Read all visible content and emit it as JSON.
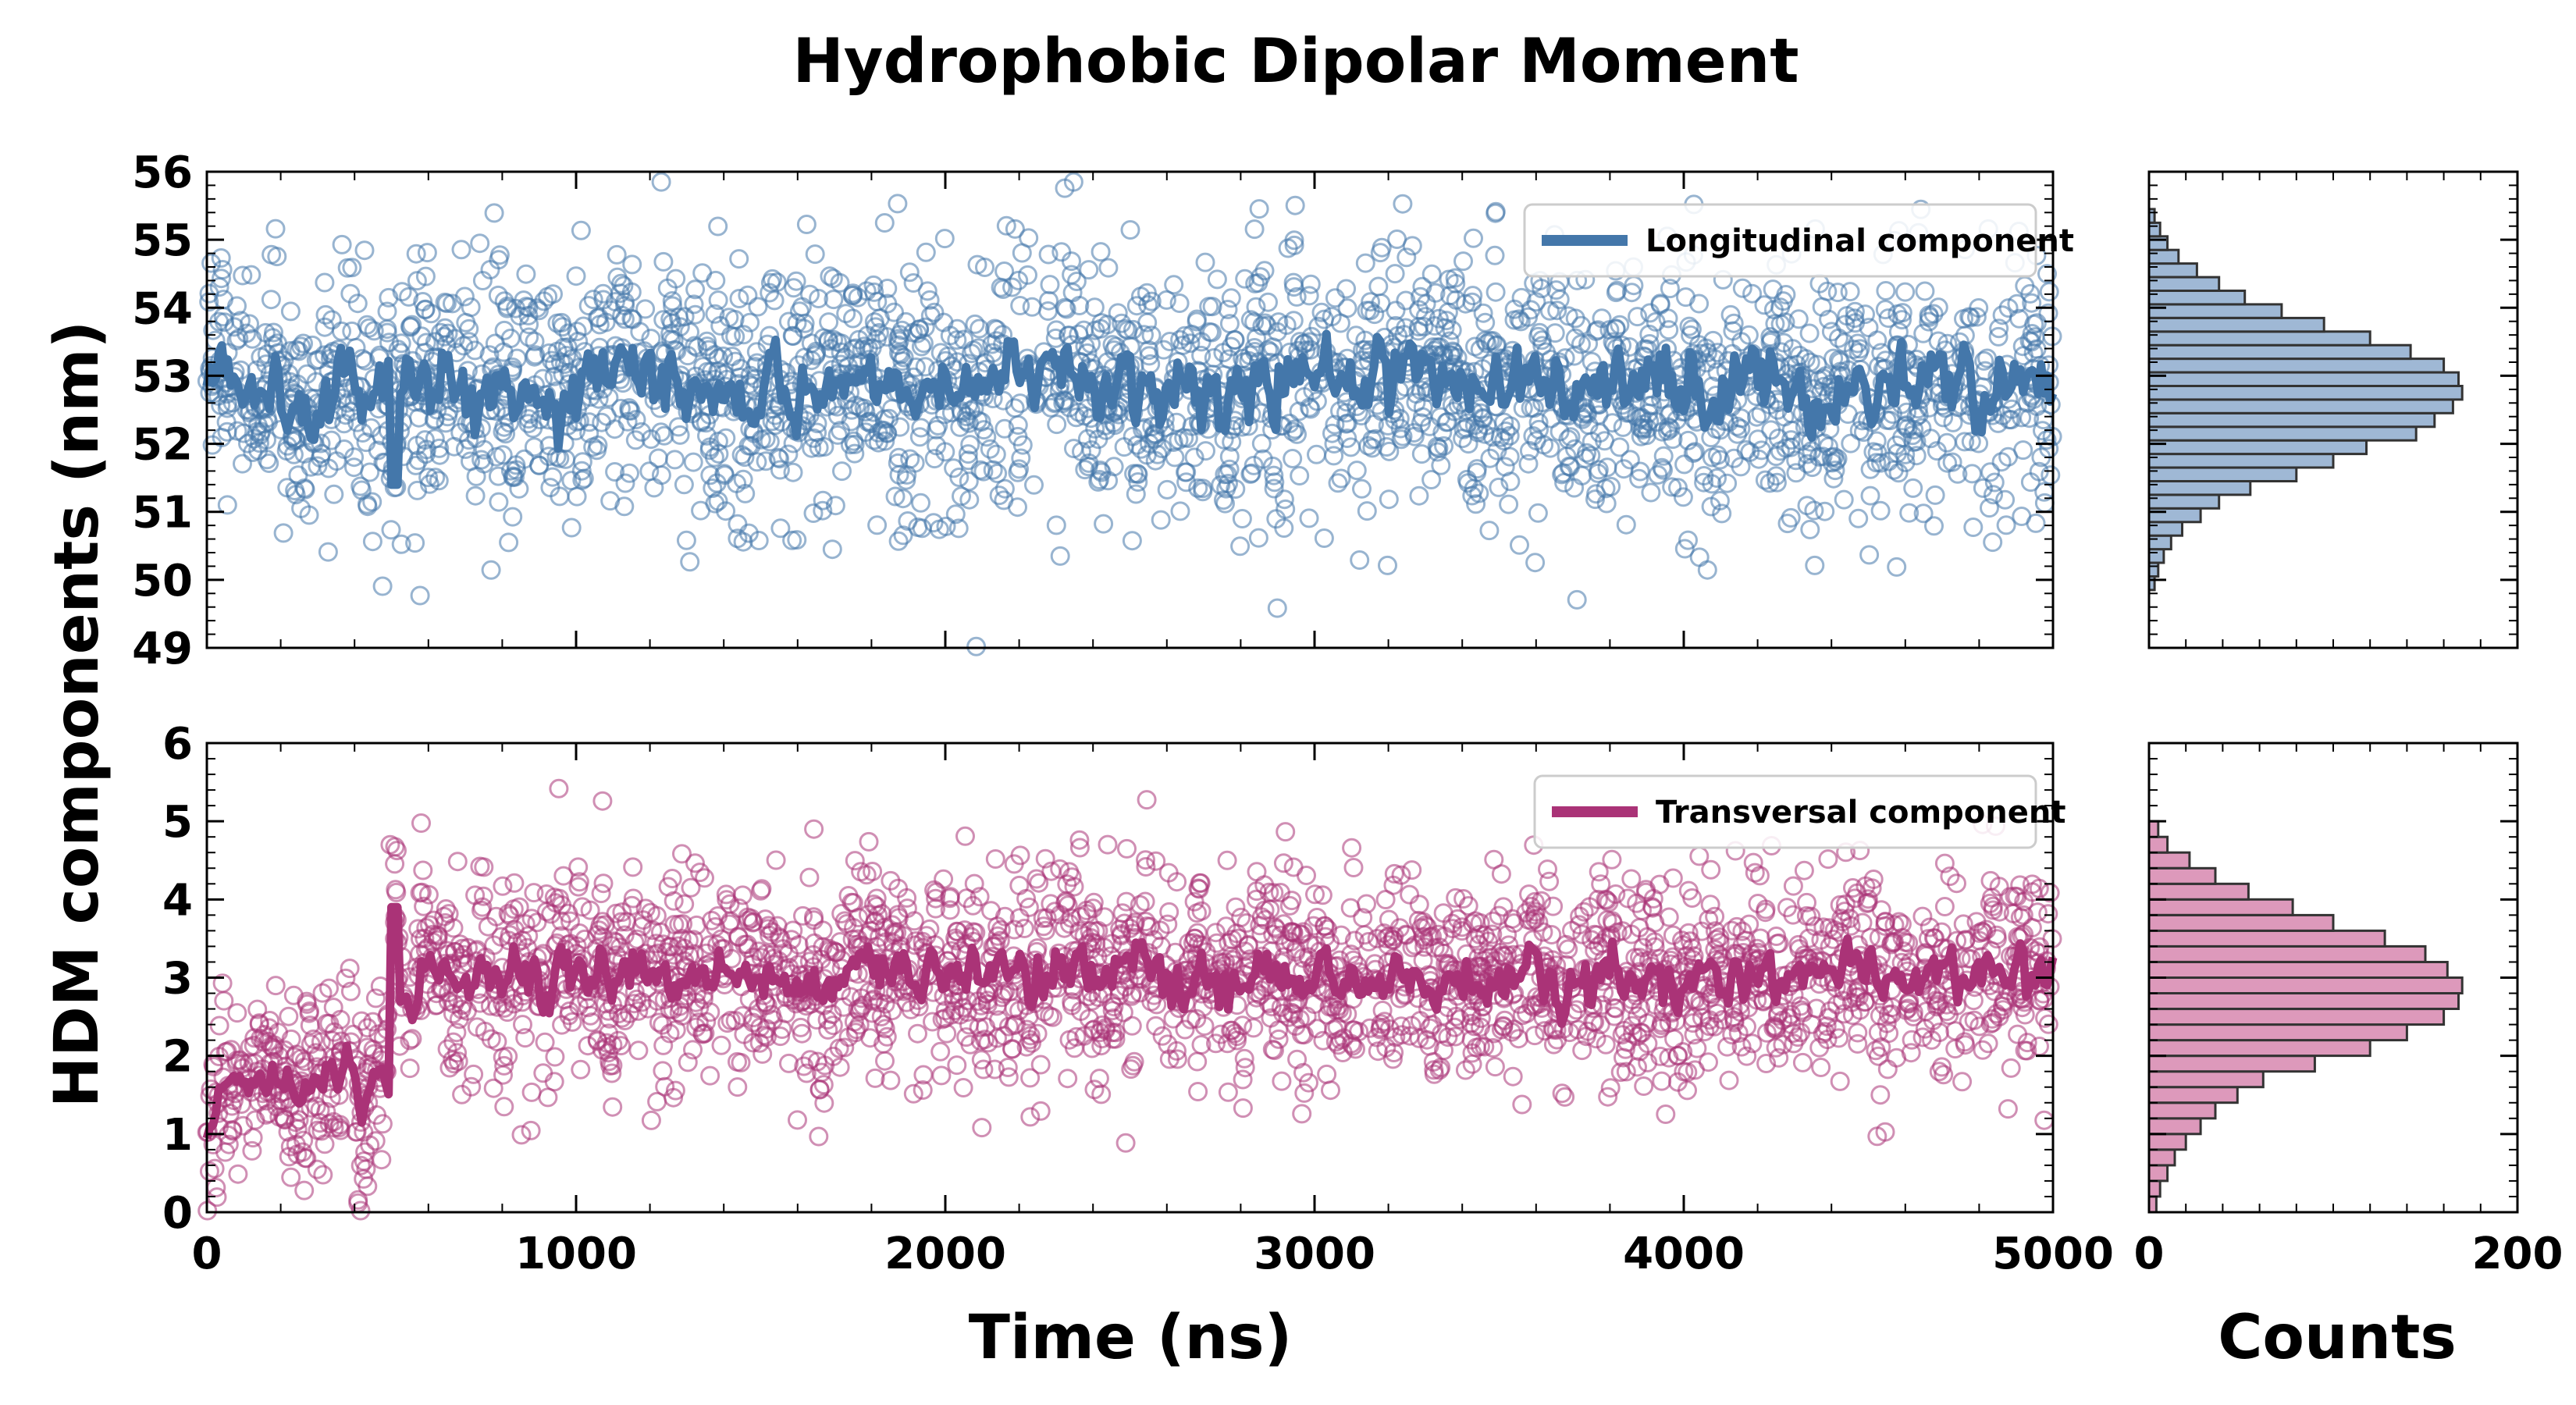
{
  "chart_data": {
    "type": "scatter",
    "title": "Hydrophobic Dipolar Moment",
    "ylabel": "HDM components (nm)",
    "xlabel": "Time (ns)",
    "hist_xlabel": "Counts",
    "xlim": [
      0,
      5000
    ],
    "xticks": [
      "0",
      "1000",
      "2000",
      "3000",
      "4000",
      "5000"
    ],
    "hist_xlim": [
      0,
      200
    ],
    "hist_xticks": [
      "0",
      "200"
    ],
    "panels": [
      {
        "name": "longitudinal",
        "legend": "Longitudinal component",
        "color": "#4477aa",
        "hist_fill": "#9fb8d5",
        "ylim": [
          49,
          56
        ],
        "yticks": [
          "49",
          "50",
          "51",
          "52",
          "53",
          "54",
          "55",
          "56"
        ],
        "running_mean_segments": [
          {
            "t_start": 0,
            "t_end": 5000,
            "level": 52.9,
            "amplitude": 0.55,
            "seed": 7
          }
        ],
        "dips": [
          {
            "t": 510,
            "value": 51.4
          }
        ],
        "scatter_spread_sd": 0.9,
        "histogram": {
          "bin_centers": [
            49.95,
            50.15,
            50.35,
            50.55,
            50.75,
            50.95,
            51.15,
            51.35,
            51.55,
            51.75,
            51.95,
            52.15,
            52.35,
            52.55,
            52.75,
            52.95,
            53.15,
            53.35,
            53.55,
            53.75,
            53.95,
            54.15,
            54.35,
            54.55,
            54.75,
            54.95,
            55.15,
            55.35
          ],
          "counts": [
            3,
            5,
            8,
            12,
            18,
            28,
            38,
            55,
            80,
            100,
            118,
            145,
            155,
            165,
            170,
            168,
            160,
            142,
            120,
            95,
            72,
            52,
            38,
            26,
            16,
            10,
            6,
            3
          ]
        }
      },
      {
        "name": "transversal",
        "legend": "Transversal component",
        "color": "#aa3377",
        "hist_fill": "#dd99bb",
        "ylim": [
          0,
          6
        ],
        "yticks": [
          "0",
          "1",
          "2",
          "3",
          "4",
          "5",
          "6"
        ],
        "running_mean_segments": [
          {
            "t_start": 0,
            "t_end": 500,
            "level": 1.7,
            "amplitude": 0.25,
            "seed": 11
          },
          {
            "t_start": 500,
            "t_end": 5000,
            "level": 3.0,
            "amplitude": 0.35,
            "seed": 13
          }
        ],
        "dips": [
          {
            "t": 510,
            "value": 3.9
          }
        ],
        "scatter_spread_sd": 0.65,
        "histogram": {
          "bin_centers": [
            0.1,
            0.3,
            0.5,
            0.7,
            0.9,
            1.1,
            1.3,
            1.5,
            1.7,
            1.9,
            2.1,
            2.3,
            2.5,
            2.7,
            2.9,
            3.1,
            3.3,
            3.5,
            3.7,
            3.9,
            4.1,
            4.3,
            4.5,
            4.7,
            4.9
          ],
          "counts": [
            4,
            6,
            10,
            14,
            20,
            28,
            36,
            48,
            62,
            90,
            120,
            140,
            160,
            168,
            170,
            162,
            150,
            128,
            100,
            78,
            54,
            36,
            22,
            10,
            5
          ]
        }
      }
    ]
  }
}
